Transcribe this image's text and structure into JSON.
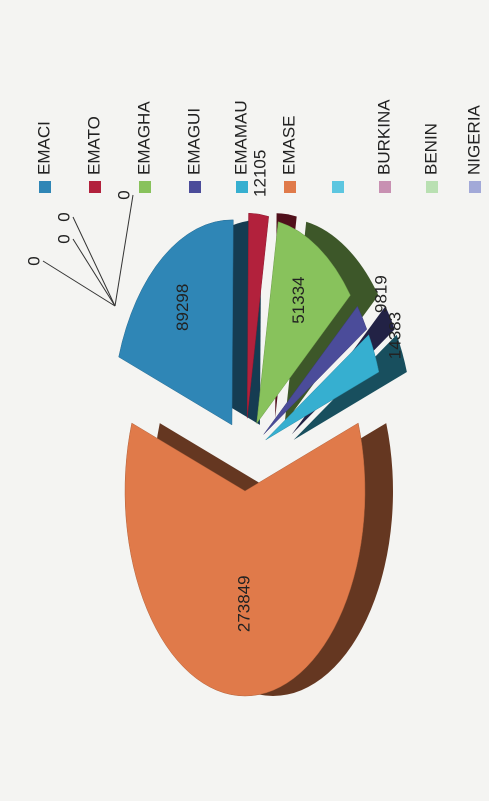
{
  "chart_data": {
    "type": "pie",
    "categories": [
      "EMACI",
      "EMATO",
      "EMAGHA",
      "EMAGUI",
      "EMAMAU",
      "EMASE",
      null,
      "BURKINA",
      "BENIN",
      "NIGERIA"
    ],
    "values": [
      89298,
      12105,
      51334,
      9819,
      14383,
      273849,
      0,
      0,
      0,
      0
    ],
    "colors": [
      "#2f86b6",
      "#b2213c",
      "#88c25c",
      "#4b4c9a",
      "#36afd0",
      "#e07a4a",
      "#5cc6e0",
      "#c890b2",
      "#b9e0b2",
      "#a2a9d8"
    ],
    "legend": "right"
  }
}
